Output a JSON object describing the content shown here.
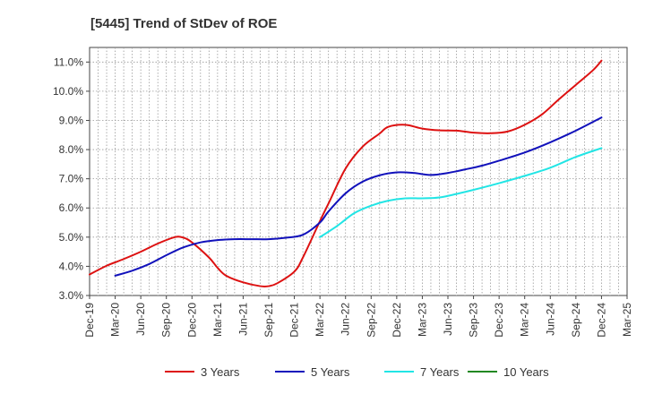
{
  "chart_data": {
    "type": "line",
    "title": "[5445]  Trend of StDev of ROE",
    "xlabel": "",
    "ylabel": "",
    "ylim": [
      3.0,
      11.5
    ],
    "grid": true,
    "legend_position": "bottom",
    "x_ticks": [
      "Dec-19",
      "Mar-20",
      "Jun-20",
      "Sep-20",
      "Dec-20",
      "Mar-21",
      "Jun-21",
      "Sep-21",
      "Dec-21",
      "Mar-22",
      "Jun-22",
      "Sep-22",
      "Dec-22",
      "Mar-23",
      "Jun-23",
      "Sep-23",
      "Dec-23",
      "Mar-24",
      "Jun-24",
      "Sep-24",
      "Dec-24",
      "Mar-25"
    ],
    "y_ticks": [
      "3.0%",
      "4.0%",
      "5.0%",
      "6.0%",
      "7.0%",
      "8.0%",
      "9.0%",
      "10.0%",
      "11.0%"
    ],
    "y_tick_values": [
      3,
      4,
      5,
      6,
      7,
      8,
      9,
      10,
      11
    ],
    "series": [
      {
        "name": "3 Years",
        "color": "#dd1111",
        "values": [
          [
            "Dec-19",
            3.72
          ],
          [
            "Feb-20",
            4.02
          ],
          [
            "Apr-20",
            4.25
          ],
          [
            "Jun-20",
            4.5
          ],
          [
            "Aug-20",
            4.78
          ],
          [
            "Oct-20",
            5.0
          ],
          [
            "Nov-20",
            4.98
          ],
          [
            "Dec-20",
            4.82
          ],
          [
            "Feb-21",
            4.3
          ],
          [
            "Mar-21",
            3.95
          ],
          [
            "Apr-21",
            3.68
          ],
          [
            "Jun-21",
            3.45
          ],
          [
            "Aug-21",
            3.32
          ],
          [
            "Sep-21",
            3.32
          ],
          [
            "Oct-21",
            3.42
          ],
          [
            "Dec-21",
            3.82
          ],
          [
            "Jan-22",
            4.3
          ],
          [
            "Mar-22",
            5.55
          ],
          [
            "Apr-22",
            6.15
          ],
          [
            "Jun-22",
            7.35
          ],
          [
            "Aug-22",
            8.1
          ],
          [
            "Oct-22",
            8.55
          ],
          [
            "Nov-22",
            8.78
          ],
          [
            "Jan-23",
            8.85
          ],
          [
            "Mar-23",
            8.72
          ],
          [
            "May-23",
            8.66
          ],
          [
            "Jul-23",
            8.65
          ],
          [
            "Sep-23",
            8.58
          ],
          [
            "Nov-23",
            8.56
          ],
          [
            "Jan-24",
            8.62
          ],
          [
            "Mar-24",
            8.85
          ],
          [
            "May-24",
            9.2
          ],
          [
            "Jul-24",
            9.72
          ],
          [
            "Sep-24",
            10.22
          ],
          [
            "Nov-24",
            10.72
          ],
          [
            "Dec-24",
            11.05
          ]
        ]
      },
      {
        "name": "5 Years",
        "color": "#1111bb",
        "values": [
          [
            "Mar-20",
            3.68
          ],
          [
            "May-20",
            3.85
          ],
          [
            "Jul-20",
            4.08
          ],
          [
            "Sep-20",
            4.38
          ],
          [
            "Nov-20",
            4.65
          ],
          [
            "Jan-21",
            4.82
          ],
          [
            "Mar-21",
            4.9
          ],
          [
            "May-21",
            4.93
          ],
          [
            "Jul-21",
            4.93
          ],
          [
            "Sep-21",
            4.93
          ],
          [
            "Nov-21",
            4.98
          ],
          [
            "Jan-22",
            5.08
          ],
          [
            "Mar-22",
            5.5
          ],
          [
            "Apr-22",
            5.88
          ],
          [
            "Jun-22",
            6.5
          ],
          [
            "Aug-22",
            6.9
          ],
          [
            "Oct-22",
            7.12
          ],
          [
            "Dec-22",
            7.22
          ],
          [
            "Feb-23",
            7.2
          ],
          [
            "Apr-23",
            7.13
          ],
          [
            "Jun-23",
            7.2
          ],
          [
            "Aug-23",
            7.32
          ],
          [
            "Oct-23",
            7.45
          ],
          [
            "Dec-23",
            7.62
          ],
          [
            "Mar-24",
            7.9
          ],
          [
            "Jun-24",
            8.25
          ],
          [
            "Sep-24",
            8.65
          ],
          [
            "Dec-24",
            9.1
          ]
        ]
      },
      {
        "name": "7 Years",
        "color": "#22e5e5",
        "values": [
          [
            "Mar-22",
            5.0
          ],
          [
            "May-22",
            5.38
          ],
          [
            "Jul-22",
            5.82
          ],
          [
            "Sep-22",
            6.08
          ],
          [
            "Nov-22",
            6.25
          ],
          [
            "Jan-23",
            6.33
          ],
          [
            "Mar-23",
            6.33
          ],
          [
            "May-23",
            6.36
          ],
          [
            "Jul-23",
            6.48
          ],
          [
            "Sep-23",
            6.62
          ],
          [
            "Dec-23",
            6.85
          ],
          [
            "Mar-24",
            7.1
          ],
          [
            "Jun-24",
            7.38
          ],
          [
            "Sep-24",
            7.75
          ],
          [
            "Dec-24",
            8.05
          ]
        ]
      },
      {
        "name": "10 Years",
        "color": "#228822",
        "values": []
      }
    ]
  }
}
